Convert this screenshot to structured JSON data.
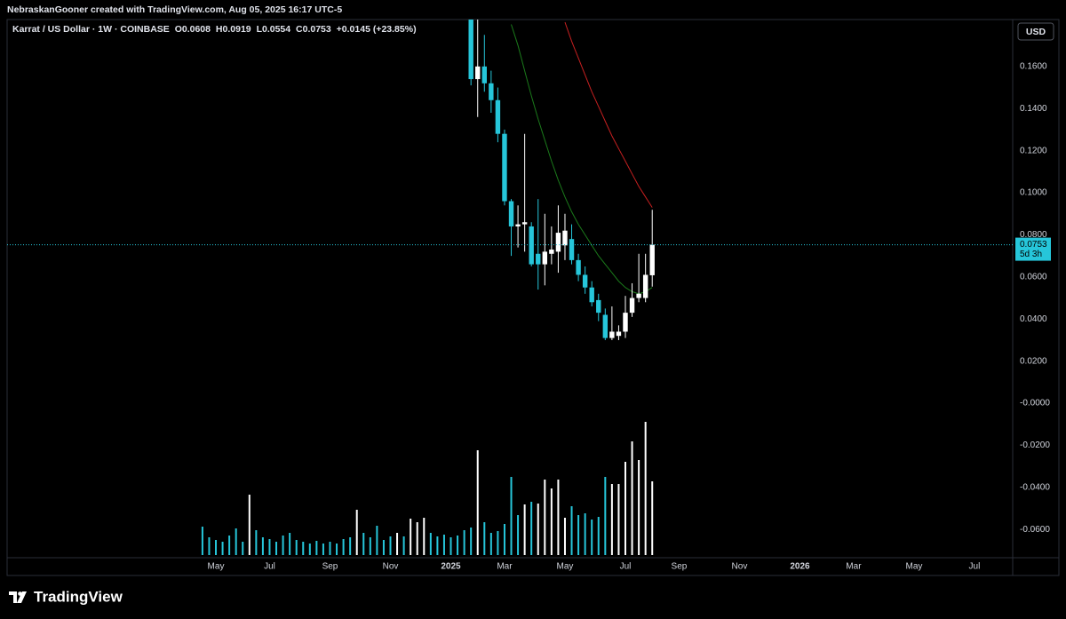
{
  "header": {
    "credit": "NebraskanGooner created with TradingView.com, Aug 05, 2025 16:17 UTC-5"
  },
  "footer": {
    "brand": "TradingView"
  },
  "chart_data": {
    "type": "candlestick",
    "title": "Karrat / US Dollar · 1W · COINBASE",
    "ohlc_letters": [
      "O",
      "H",
      "L",
      "C"
    ],
    "change": "+0.0145 (+23.85%)",
    "currency": "USD",
    "last_price": 0.0753,
    "countdown": "5d 3h",
    "up_color": "#ffffff",
    "down_color": "#26c6da",
    "grid": false,
    "ylim": [
      -0.0734,
      0.1823
    ],
    "yticks": [
      {
        "value": 0.16,
        "label": "0.1600"
      },
      {
        "value": 0.14,
        "label": "0.1400"
      },
      {
        "value": 0.12,
        "label": "0.1200"
      },
      {
        "value": 0.1,
        "label": "0.1000"
      },
      {
        "value": 0.08,
        "label": "0.0800"
      },
      {
        "value": 0.06,
        "label": "0.0600"
      },
      {
        "value": 0.04,
        "label": "0.0400"
      },
      {
        "value": 0.02,
        "label": "0.0200"
      },
      {
        "value": 0,
        "label": "-0.0000"
      },
      {
        "value": -0.02,
        "label": "-0.0200"
      },
      {
        "value": -0.04,
        "label": "-0.0400"
      },
      {
        "value": -0.06,
        "label": "-0.0600"
      }
    ],
    "categories": [
      null,
      null,
      "May",
      null,
      null,
      null,
      null,
      null,
      null,
      null,
      "Jul",
      null,
      null,
      null,
      null,
      null,
      null,
      null,
      null,
      "Sep",
      null,
      null,
      null,
      null,
      null,
      null,
      null,
      null,
      "Nov",
      null,
      null,
      null,
      null,
      null,
      null,
      null,
      null,
      "2025",
      null,
      null,
      null,
      null,
      null,
      null,
      null,
      "Mar",
      null,
      null,
      null,
      null,
      null,
      null,
      null,
      null,
      "May",
      null,
      null,
      null,
      null,
      null,
      null,
      null,
      null,
      "Jul",
      null,
      null,
      null,
      null,
      null,
      null,
      null,
      "Sep",
      null,
      null,
      null,
      null,
      null,
      null,
      null,
      null,
      "Nov",
      null,
      null,
      null,
      null,
      null,
      null,
      null,
      null,
      "2026",
      null,
      null,
      null,
      null,
      null,
      null,
      null,
      "Mar",
      null,
      null,
      null,
      null,
      null,
      null,
      null,
      null,
      "May",
      null,
      null,
      null,
      null,
      null,
      null,
      null,
      null,
      "Jul",
      null,
      null,
      null,
      null,
      null
    ],
    "open": [
      null,
      null,
      null,
      null,
      null,
      null,
      null,
      null,
      null,
      null,
      null,
      null,
      null,
      null,
      null,
      null,
      null,
      null,
      null,
      null,
      null,
      null,
      null,
      null,
      null,
      null,
      null,
      null,
      null,
      null,
      null,
      null,
      null,
      null,
      null,
      null,
      null,
      null,
      null,
      null,
      0.2,
      0.154,
      0.16,
      0.152,
      0.144,
      0.128,
      0.096,
      0.084,
      0.085,
      0.084,
      0.071,
      0.066,
      0.071,
      0.072,
      0.075,
      0.078,
      0.068,
      0.061,
      0.055,
      0.049,
      0.042,
      0.031,
      0.032,
      0.034,
      0.043,
      0.05,
      0.05,
      0.0608,
      null,
      null,
      null,
      null,
      null,
      null,
      null,
      null,
      null,
      null,
      null,
      null,
      null,
      null,
      null,
      null,
      null,
      null,
      null,
      null,
      null,
      null,
      null,
      null,
      null,
      null,
      null,
      null,
      null,
      null,
      null,
      null,
      null,
      null,
      null,
      null,
      null,
      null,
      null,
      null,
      null,
      null,
      null,
      null,
      null,
      null,
      null,
      null,
      null,
      null,
      null,
      null,
      null
    ],
    "high": [
      null,
      null,
      null,
      null,
      null,
      null,
      null,
      null,
      null,
      null,
      null,
      null,
      null,
      null,
      null,
      null,
      null,
      null,
      null,
      null,
      null,
      null,
      null,
      null,
      null,
      null,
      null,
      null,
      null,
      null,
      null,
      null,
      null,
      null,
      null,
      null,
      null,
      null,
      null,
      null,
      0.215,
      0.19,
      0.175,
      0.158,
      0.15,
      0.13,
      0.097,
      0.094,
      0.128,
      0.086,
      0.097,
      0.09,
      0.084,
      0.094,
      0.09,
      0.085,
      0.071,
      0.065,
      0.058,
      0.052,
      0.045,
      0.046,
      0.037,
      0.051,
      0.057,
      0.071,
      0.071,
      0.0919,
      null,
      null,
      null,
      null,
      null,
      null,
      null,
      null,
      null,
      null,
      null,
      null,
      null,
      null,
      null,
      null,
      null,
      null,
      null,
      null,
      null,
      null,
      null,
      null,
      null,
      null,
      null,
      null,
      null,
      null,
      null,
      null,
      null,
      null,
      null,
      null,
      null,
      null,
      null,
      null,
      null,
      null,
      null,
      null,
      null,
      null,
      null,
      null,
      null,
      null,
      null,
      null,
      null
    ],
    "low": [
      null,
      null,
      null,
      null,
      null,
      null,
      null,
      null,
      null,
      null,
      null,
      null,
      null,
      null,
      null,
      null,
      null,
      null,
      null,
      null,
      null,
      null,
      null,
      null,
      null,
      null,
      null,
      null,
      null,
      null,
      null,
      null,
      null,
      null,
      null,
      null,
      null,
      null,
      null,
      null,
      0.151,
      0.136,
      0.148,
      0.138,
      0.124,
      0.094,
      0.07,
      0.074,
      0.072,
      0.065,
      0.054,
      0.056,
      0.066,
      0.062,
      0.068,
      0.066,
      0.058,
      0.052,
      0.046,
      0.039,
      0.03,
      0.03,
      0.03,
      0.031,
      0.041,
      0.048,
      0.048,
      0.0554,
      null,
      null,
      null,
      null,
      null,
      null,
      null,
      null,
      null,
      null,
      null,
      null,
      null,
      null,
      null,
      null,
      null,
      null,
      null,
      null,
      null,
      null,
      null,
      null,
      null,
      null,
      null,
      null,
      null,
      null,
      null,
      null,
      null,
      null,
      null,
      null,
      null,
      null,
      null,
      null,
      null,
      null,
      null,
      null,
      null,
      null,
      null,
      null,
      null,
      null,
      null,
      null,
      null
    ],
    "close": [
      null,
      null,
      null,
      null,
      null,
      null,
      null,
      null,
      null,
      null,
      null,
      null,
      null,
      null,
      null,
      null,
      null,
      null,
      null,
      null,
      null,
      null,
      null,
      null,
      null,
      null,
      null,
      null,
      null,
      null,
      null,
      null,
      null,
      null,
      null,
      null,
      null,
      null,
      null,
      null,
      0.154,
      0.16,
      0.152,
      0.144,
      0.128,
      0.096,
      0.084,
      0.085,
      0.086,
      0.066,
      0.066,
      0.072,
      0.073,
      0.081,
      0.082,
      0.068,
      0.061,
      0.055,
      0.048,
      0.043,
      0.031,
      0.034,
      0.034,
      0.043,
      0.05,
      0.052,
      0.061,
      0.0753,
      null,
      null,
      null,
      null,
      null,
      null,
      null,
      null,
      null,
      null,
      null,
      null,
      null,
      null,
      null,
      null,
      null,
      null,
      null,
      null,
      null,
      null,
      null,
      null,
      null,
      null,
      null,
      null,
      null,
      null,
      null,
      null,
      null,
      null,
      null,
      null,
      null,
      null,
      null,
      null,
      null,
      null,
      null,
      null,
      null,
      null,
      null,
      null,
      null,
      null,
      null,
      null,
      null
    ],
    "moving_averages": [
      {
        "color": "#1b7a1b",
        "values": [
          null,
          null,
          null,
          null,
          null,
          null,
          null,
          null,
          null,
          null,
          null,
          null,
          null,
          null,
          null,
          null,
          null,
          null,
          null,
          null,
          null,
          null,
          null,
          null,
          null,
          null,
          null,
          null,
          null,
          null,
          null,
          null,
          null,
          null,
          null,
          null,
          null,
          null,
          null,
          null,
          null,
          null,
          null,
          null,
          null,
          null,
          0.18,
          0.17,
          0.158,
          0.146,
          0.135,
          0.125,
          0.115,
          0.106,
          0.098,
          0.091,
          0.085,
          0.08,
          0.075,
          0.07,
          0.066,
          0.062,
          0.058,
          0.055,
          0.053,
          0.052,
          0.053,
          0.055,
          null,
          null,
          null,
          null,
          null,
          null,
          null,
          null,
          null,
          null,
          null,
          null,
          null,
          null,
          null,
          null,
          null,
          null,
          null,
          null,
          null,
          null,
          null,
          null,
          null,
          null,
          null,
          null,
          null,
          null,
          null,
          null,
          null,
          null,
          null,
          null,
          null,
          null,
          null,
          null,
          null,
          null,
          null,
          null,
          null,
          null,
          null,
          null,
          null,
          null,
          null,
          null,
          null
        ]
      },
      {
        "color": "#c62020",
        "values": [
          null,
          null,
          null,
          null,
          null,
          null,
          null,
          null,
          null,
          null,
          null,
          null,
          null,
          null,
          null,
          null,
          null,
          null,
          null,
          null,
          null,
          null,
          null,
          null,
          null,
          null,
          null,
          null,
          null,
          null,
          null,
          null,
          null,
          null,
          null,
          null,
          null,
          null,
          null,
          null,
          null,
          null,
          null,
          null,
          null,
          null,
          null,
          null,
          null,
          null,
          null,
          null,
          null,
          null,
          0.181,
          0.172,
          0.164,
          0.156,
          0.148,
          0.141,
          0.134,
          0.127,
          0.121,
          0.115,
          0.109,
          0.103,
          0.098,
          0.093,
          null,
          null,
          null,
          null,
          null,
          null,
          null,
          null,
          null,
          null,
          null,
          null,
          null,
          null,
          null,
          null,
          null,
          null,
          null,
          null,
          null,
          null,
          null,
          null,
          null,
          null,
          null,
          null,
          null,
          null,
          null,
          null,
          null,
          null,
          null,
          null,
          null,
          null,
          null,
          null,
          null,
          null,
          null,
          null,
          null,
          null,
          null,
          null,
          null,
          null,
          null,
          null,
          null
        ]
      }
    ],
    "volume": {
      "values": [
        32,
        20,
        17,
        15,
        22,
        30,
        15,
        68,
        28,
        20,
        18,
        15,
        22,
        25,
        17,
        15,
        13,
        16,
        13,
        15,
        13,
        18,
        20,
        51,
        25,
        20,
        33,
        17,
        21,
        25,
        21,
        41,
        37,
        42,
        25,
        21,
        23,
        20,
        22,
        28,
        31,
        118,
        37,
        25,
        27,
        35,
        88,
        45,
        57,
        60,
        58,
        85,
        75,
        85,
        42,
        55,
        45,
        47,
        40,
        43,
        88,
        80,
        80,
        105,
        128,
        107,
        150,
        83,
        null,
        null,
        null,
        null,
        null,
        null,
        null,
        null,
        null,
        null,
        null,
        null,
        null,
        null,
        null,
        null,
        null,
        null,
        null,
        null,
        null,
        null,
        null,
        null,
        null,
        null,
        null,
        null,
        null,
        null,
        null,
        null,
        null,
        null,
        null,
        null,
        null,
        null,
        null,
        null,
        null,
        null,
        null,
        null,
        null,
        null,
        null,
        null,
        null,
        null,
        null,
        null,
        null
      ],
      "colors": [
        "#26c6da",
        "#26c6da",
        "#26c6da",
        "#26c6da",
        "#26c6da",
        "#26c6da",
        "#26c6da",
        "#ffffff",
        "#26c6da",
        "#26c6da",
        "#26c6da",
        "#26c6da",
        "#26c6da",
        "#26c6da",
        "#26c6da",
        "#26c6da",
        "#26c6da",
        "#26c6da",
        "#26c6da",
        "#26c6da",
        "#26c6da",
        "#26c6da",
        "#26c6da",
        "#ffffff",
        "#26c6da",
        "#26c6da",
        "#26c6da",
        "#26c6da",
        "#26c6da",
        "#ffffff",
        "#26c6da",
        "#ffffff",
        "#ffffff",
        "#ffffff",
        "#26c6da",
        "#26c6da",
        "#26c6da",
        "#26c6da",
        "#26c6da",
        "#26c6da",
        "#26c6da",
        "#ffffff",
        "#26c6da",
        "#26c6da",
        "#26c6da",
        "#26c6da",
        "#26c6da",
        "#26c6da",
        "#ffffff",
        "#26c6da",
        "#ffffff",
        "#ffffff",
        "#ffffff",
        "#ffffff",
        "#ffffff",
        "#26c6da",
        "#26c6da",
        "#26c6da",
        "#26c6da",
        "#26c6da",
        "#26c6da",
        "#ffffff",
        "#ffffff",
        "#ffffff",
        "#ffffff",
        "#ffffff",
        "#ffffff",
        "#ffffff",
        null,
        null,
        null,
        null,
        null,
        null,
        null,
        null,
        null,
        null,
        null,
        null,
        null,
        null,
        null,
        null,
        null,
        null,
        null,
        null,
        null,
        null,
        null,
        null,
        null,
        null,
        null,
        null,
        null,
        null,
        null,
        null,
        null,
        null,
        null,
        null,
        null,
        null,
        null,
        null,
        null,
        null,
        null,
        null,
        null,
        null,
        null,
        null,
        null,
        null,
        null,
        null,
        null
      ]
    }
  }
}
